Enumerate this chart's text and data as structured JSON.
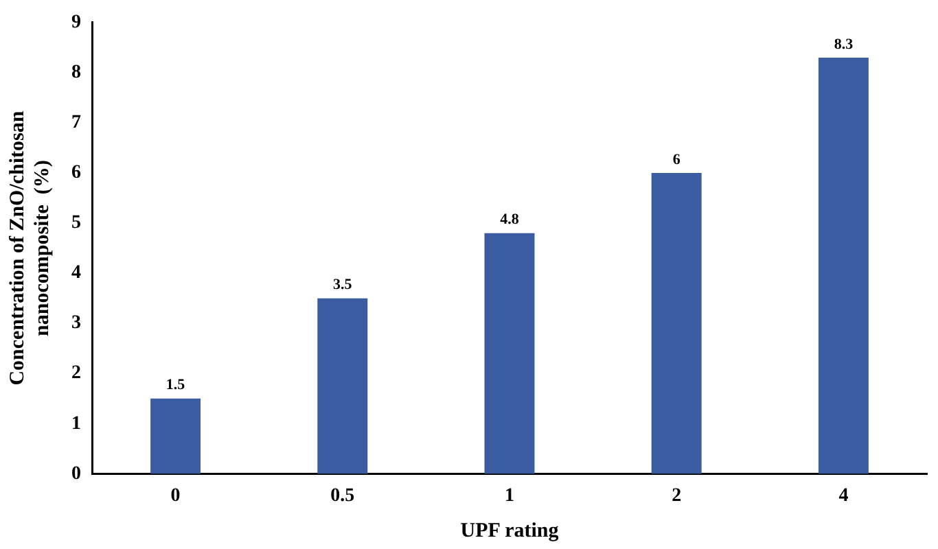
{
  "chart_data": {
    "type": "bar",
    "xlabel": "UPF rating",
    "ylabel": "Concentration of ZnO/chitosan nanocomposite  (%)",
    "categories": [
      "0",
      "0.5",
      "1",
      "2",
      "4"
    ],
    "values": [
      1.5,
      3.5,
      4.8,
      6,
      8.3
    ],
    "color": "#3b5ca0",
    "ylim": [
      0,
      9
    ],
    "yticks": [
      0,
      1,
      2,
      3,
      4,
      5,
      6,
      7,
      8,
      9
    ],
    "grid": false,
    "data_labels": true
  }
}
